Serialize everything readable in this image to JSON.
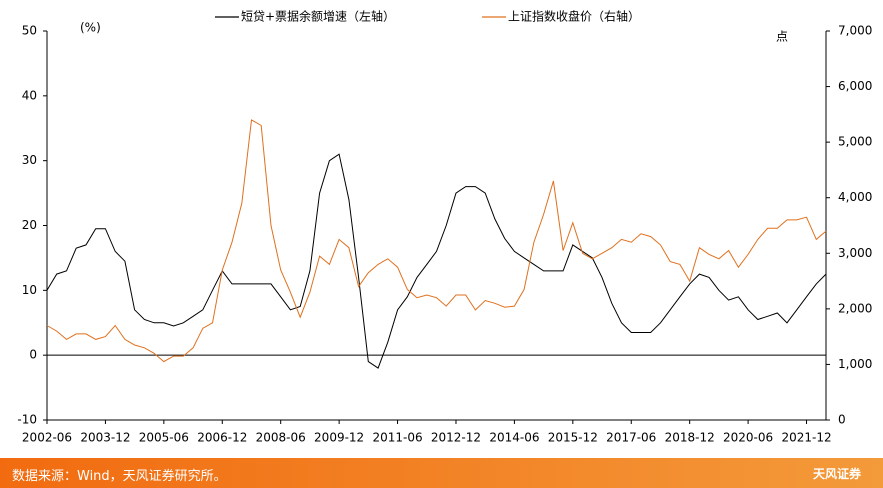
{
  "chart_data": {
    "type": "line",
    "legend_labels": [
      "短贷+票据余额增速（左轴）",
      "上证指数收盘价（右轴）"
    ],
    "y_label": "(%)",
    "y2_label": "点",
    "categories": [
      "2002-06",
      null,
      null,
      null,
      null,
      null,
      "2003-12",
      null,
      null,
      null,
      null,
      null,
      "2005-06",
      null,
      null,
      null,
      null,
      null,
      "2006-12",
      null,
      null,
      null,
      null,
      null,
      "2008-06",
      null,
      null,
      null,
      null,
      null,
      "2009-12",
      null,
      null,
      null,
      null,
      null,
      "2011-06",
      null,
      null,
      null,
      null,
      null,
      "2012-12",
      null,
      null,
      null,
      null,
      null,
      "2014-06",
      null,
      null,
      null,
      null,
      null,
      "2015-12",
      null,
      null,
      null,
      null,
      null,
      "2017-06",
      null,
      null,
      null,
      null,
      null,
      "2018-12",
      null,
      null,
      null,
      null,
      null,
      "2020-06",
      null,
      null,
      null,
      null,
      null,
      "2021-12",
      null,
      null
    ],
    "series": [
      {
        "name": "短贷+票据余额增速（左轴）",
        "color": "#000000",
        "values": [
          10,
          12.5,
          13,
          16.5,
          17,
          19.5,
          19.5,
          16,
          14.5,
          7,
          5.5,
          5,
          5,
          4.5,
          5,
          6,
          7,
          10,
          13,
          11,
          11,
          11,
          11,
          11,
          9,
          7,
          7.5,
          13,
          25,
          30,
          31,
          24,
          12,
          -1,
          -2,
          2,
          7,
          9,
          12,
          14,
          16,
          20,
          25,
          26,
          26,
          25,
          21,
          18,
          16,
          15,
          14,
          13,
          13,
          13,
          17,
          16,
          15,
          12,
          8,
          5,
          3.5,
          3.5,
          3.5,
          5,
          7,
          9,
          11,
          12.5,
          12,
          10,
          8.5,
          9,
          7,
          5.5,
          6,
          6.5,
          5,
          7,
          9,
          11,
          12.5
        ]
      },
      {
        "name": "上证指数收盘价（右轴）",
        "color": "#e0701e",
        "axis": "y2",
        "values": [
          1700,
          1600,
          1450,
          1550,
          1550,
          1450,
          1500,
          1700,
          1450,
          1350,
          1300,
          1200,
          1050,
          1150,
          1150,
          1300,
          1650,
          1750,
          2700,
          3200,
          3900,
          5400,
          5300,
          3500,
          2700,
          2300,
          1850,
          2300,
          2950,
          2800,
          3250,
          3100,
          2400,
          2650,
          2800,
          2900,
          2750,
          2350,
          2200,
          2250,
          2200,
          2050,
          2250,
          2250,
          1980,
          2150,
          2100,
          2030,
          2050,
          2350,
          3200,
          3700,
          4300,
          3050,
          3550,
          3000,
          2900,
          3000,
          3100,
          3250,
          3200,
          3350,
          3300,
          3150,
          2850,
          2800,
          2500,
          3100,
          2980,
          2900,
          3050,
          2750,
          2980,
          3250,
          3450,
          3450,
          3600,
          3600,
          3650,
          3250,
          3400
        ]
      }
    ],
    "ylim": [
      -10,
      50
    ],
    "yticks": [
      -10,
      0,
      10,
      20,
      30,
      40,
      50
    ],
    "y2lim": [
      0,
      7000
    ],
    "y2ticks": [
      0,
      {
        "value": 1000,
        "label": "1,000"
      },
      {
        "value": 2000,
        "label": "2,000"
      },
      {
        "value": 3000,
        "label": "3,000"
      },
      {
        "value": 4000,
        "label": "4,000"
      },
      {
        "value": 5000,
        "label": "5,000"
      },
      {
        "value": 6000,
        "label": "6,000"
      },
      {
        "value": 7000,
        "label": "7,000"
      }
    ]
  },
  "footer": {
    "source": "数据来源：Wind，天风证券研究所。",
    "logo": "天风证券"
  }
}
